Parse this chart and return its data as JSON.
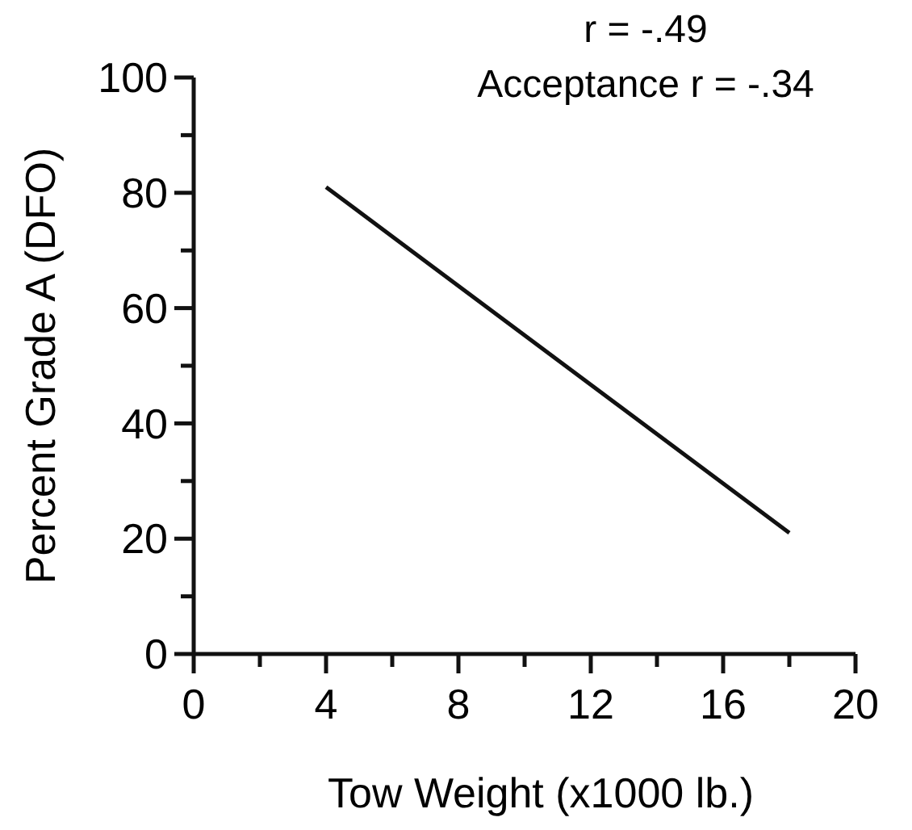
{
  "chart_data": {
    "type": "line",
    "xlabel": "Tow Weight (x1000 lb.)",
    "ylabel": "Percent Grade A (DFO)",
    "x": [
      4,
      18
    ],
    "series": [
      {
        "color": "#111111",
        "values": [
          81,
          21
        ]
      }
    ],
    "xlim": [
      0,
      20
    ],
    "xticks": [
      0,
      {
        "value": 2,
        "label": null
      },
      4,
      {
        "value": 6,
        "label": null
      },
      8,
      {
        "value": 10,
        "label": null
      },
      12,
      {
        "value": 14,
        "label": null
      },
      16,
      {
        "value": 18,
        "label": null
      },
      20
    ],
    "ylim": [
      0,
      100
    ],
    "yticks": [
      0,
      {
        "value": 10,
        "label": null
      },
      20,
      {
        "value": 30,
        "label": null
      },
      40,
      {
        "value": 50,
        "label": null
      },
      60,
      {
        "value": 70,
        "label": null
      },
      80,
      {
        "value": 90,
        "label": null
      },
      100
    ],
    "annotations": [
      "r = -.49",
      "Acceptance  r = -.34"
    ],
    "grid": false,
    "marker": "none",
    "line_style": "solid"
  }
}
